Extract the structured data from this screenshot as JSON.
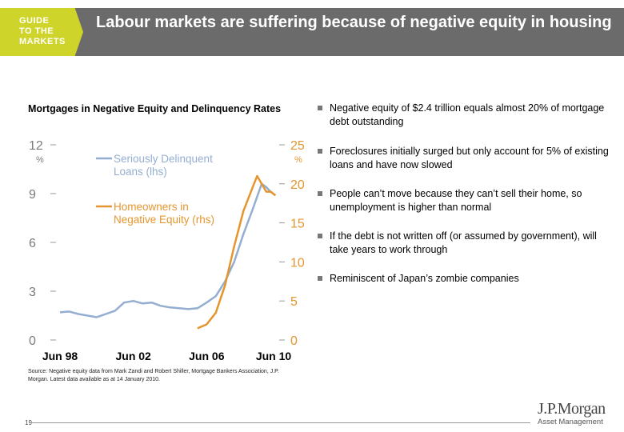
{
  "header": {
    "badge_lines": [
      "GUIDE",
      "TO THE",
      "MARKETS"
    ],
    "title": "Labour markets are suffering because of negative equity in housing"
  },
  "chart_title": "Mortgages in Negative Equity and Delinquency Rates",
  "colors": {
    "header_bg": "#6b6b6b",
    "badge": "#cfd42a",
    "lhs_series": "#94aed1",
    "rhs_series": "#e5952e",
    "lhs_axis": "#7a7a7a",
    "rhs_axis": "#e5952e"
  },
  "chart_data": {
    "type": "line",
    "x_ticks": [
      "Jun 98",
      "Jun 02",
      "Jun 06",
      "Jun 10"
    ],
    "x_range": [
      1998.5,
      2010.5
    ],
    "y_left": {
      "ticks": [
        "12",
        "9",
        "6",
        "3",
        "0"
      ],
      "unit": "%",
      "range": [
        0,
        12
      ]
    },
    "y_right": {
      "ticks": [
        "25",
        "20",
        "15",
        "10",
        "5",
        "0"
      ],
      "unit": "%",
      "range": [
        0,
        25
      ]
    },
    "series": [
      {
        "name": "Seriously Delinquent Loans (lhs)",
        "axis": "left",
        "color": "#94aed1",
        "x": [
          1998.5,
          1999.0,
          1999.5,
          2000.0,
          2000.5,
          2001.0,
          2001.5,
          2002.0,
          2002.5,
          2003.0,
          2003.5,
          2004.0,
          2004.5,
          2005.0,
          2005.5,
          2006.0,
          2006.5,
          2007.0,
          2007.5,
          2008.0,
          2008.5,
          2009.0,
          2009.5,
          2009.75,
          2010.0,
          2010.25
        ],
        "values": [
          1.7,
          1.75,
          1.6,
          1.5,
          1.4,
          1.6,
          1.8,
          2.3,
          2.4,
          2.25,
          2.3,
          2.1,
          2.0,
          1.95,
          1.9,
          1.95,
          2.3,
          2.7,
          3.6,
          4.8,
          6.5,
          8.0,
          9.6,
          9.4,
          9.1,
          8.9
        ]
      },
      {
        "name": "Homeowners in Negative Equity (rhs)",
        "axis": "right",
        "color": "#e5952e",
        "x": [
          2006.0,
          2006.5,
          2007.0,
          2007.5,
          2008.0,
          2008.5,
          2009.0,
          2009.25,
          2009.5,
          2009.75,
          2010.0,
          2010.25
        ],
        "values": [
          1.5,
          2.0,
          3.5,
          7.0,
          12.0,
          16.5,
          19.5,
          21.0,
          20.0,
          19.0,
          19.0,
          18.5
        ]
      }
    ]
  },
  "bullets": [
    "Negative equity of $2.4 trillion equals almost 20% of mortgage debt outstanding",
    "Foreclosures initially surged but only account for 5% of existing loans and have now slowed",
    "People can’t move because they can’t sell their home, so unemployment is higher than normal",
    "If the debt is not written off (or assumed by government), will take years to work through",
    "Reminiscent of Japan’s zombie companies"
  ],
  "source": "Source: Negative equity data from Mark Zandi and Robert Shiller, Mortgage Bankers Association, J.P. Morgan. Latest data available as at 14 January 2010.",
  "page_number": "19",
  "logo": {
    "main": "J.P.Morgan",
    "sub": "Asset Management"
  }
}
